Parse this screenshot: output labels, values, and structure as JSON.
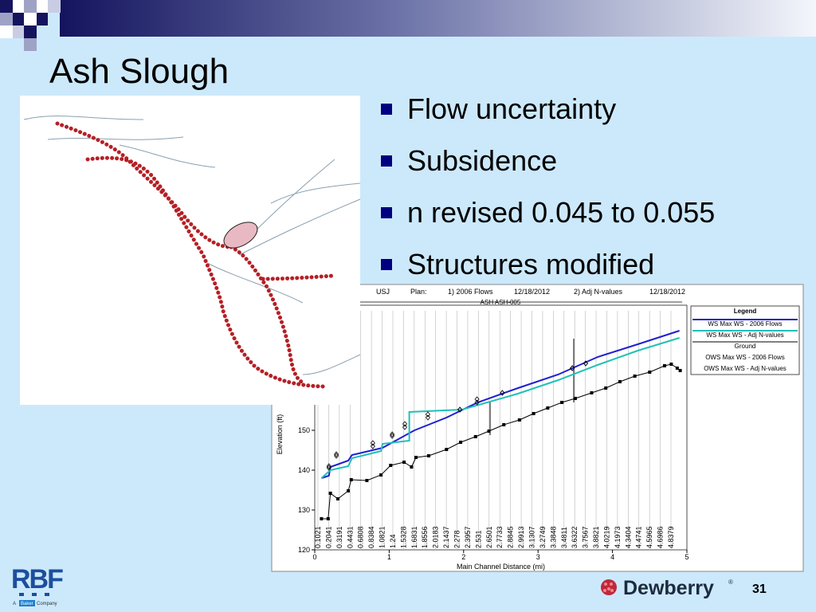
{
  "title": "Ash Slough",
  "bullets": [
    "Flow uncertainty",
    "Subsidence",
    "n revised 0.045 to 0.055",
    "Structures modified"
  ],
  "chart": {
    "type": "line",
    "header": [
      "USJ",
      "Plan:",
      "1) 2006 Flows",
      "12/18/2012",
      "2) Adj N-values",
      "12/18/2012"
    ],
    "reach_label": "ASH ASH-005",
    "legend_title": "Legend",
    "y_label": "Elevation (ft)",
    "x_label": "Main Channel Distance (mi)",
    "xlim": [
      0,
      5
    ],
    "xticks": [
      0,
      1,
      2,
      3,
      4,
      5
    ],
    "ylim": [
      120,
      180
    ],
    "yticks": [
      120,
      130,
      140,
      150
    ],
    "stations": [
      "0.1021",
      "0.2041",
      "0.3191",
      "0.4431",
      "0.6808",
      "0.8384",
      "1.0821",
      "1.24",
      "1.5328",
      "1.6831",
      "1.8556",
      "2.0183",
      "2.1437",
      "2.278",
      "2.3957",
      "2.531",
      "2.6501",
      "2.7733",
      "2.8845",
      "2.9913",
      "3.1307",
      "3.2749",
      "3.3848",
      "3.4811",
      "3.6322",
      "3.7567",
      "3.8821",
      "4.0219",
      "4.1973",
      "4.3404",
      "4.4741",
      "4.5965",
      "4.6986",
      "4.8379"
    ],
    "series": [
      {
        "name": "WS Max WS - 2006 Flows",
        "color": "#1f1fd0",
        "style": "line",
        "x": [
          0.09,
          0.19,
          0.21,
          0.45,
          0.5,
          0.91,
          1.34,
          1.77,
          2.19,
          2.73,
          3.27,
          3.8,
          4.34,
          4.9
        ],
        "values": [
          138,
          138.6,
          140.8,
          142.4,
          143.8,
          145.6,
          150,
          153.2,
          157,
          160.6,
          164,
          168.4,
          171.6,
          175
        ]
      },
      {
        "name": "WS Max WS - Adj N-values",
        "color": "#20c0b8",
        "style": "line",
        "x": [
          0.09,
          0.21,
          0.45,
          0.5,
          0.89,
          0.91,
          1.27,
          1.27,
          1.98,
          2.73,
          3.27,
          3.8,
          4.34,
          4.9
        ],
        "values": [
          138,
          140,
          141,
          143,
          144.8,
          146.6,
          147.4,
          154.6,
          155.2,
          159.2,
          162.6,
          166.4,
          170,
          173.2
        ]
      },
      {
        "name": "Ground",
        "color": "#000000",
        "style": "line-markers",
        "x": [
          0.09,
          0.18,
          0.21,
          0.31,
          0.45,
          0.49,
          0.7,
          0.89,
          1.02,
          1.2,
          1.3,
          1.36,
          1.53,
          1.77,
          1.96,
          2.16,
          2.34,
          2.54,
          2.75,
          2.94,
          3.13,
          3.32,
          3.5,
          3.72,
          3.91,
          4.1,
          4.3,
          4.5,
          4.7,
          4.79,
          4.87,
          4.91
        ],
        "values": [
          127.8,
          127.8,
          134.2,
          132.8,
          134.8,
          137.6,
          137.4,
          138.8,
          141.2,
          142,
          140.8,
          143.2,
          143.6,
          145.2,
          147,
          148.4,
          149.8,
          151.4,
          152.6,
          154.2,
          155.6,
          157,
          158,
          159.4,
          160.6,
          162.2,
          163.6,
          164.6,
          166.2,
          166.6,
          165.6,
          165
        ]
      },
      {
        "name": "OWS Max WS - 2006 Flows",
        "color": "#000000",
        "style": "markers",
        "x": [
          0.19,
          0.29,
          0.78,
          1.04,
          1.21,
          1.52,
          1.95,
          2.18,
          2.52,
          3.46,
          3.64
        ],
        "values": [
          141,
          144,
          146.8,
          149,
          151.6,
          154,
          155.2,
          157.8,
          159.4,
          165.6,
          166.8
        ]
      },
      {
        "name": "OWS Max WS - Adj N-values",
        "color": "#000000",
        "style": "markers",
        "x": [
          0.19,
          0.29,
          0.78,
          1.04,
          1.21,
          1.52,
          1.95,
          2.18,
          2.52,
          3.46,
          3.64
        ],
        "values": [
          140.6,
          143.6,
          146,
          148.6,
          150.8,
          153.2,
          155.2,
          157,
          159.4,
          165.6,
          166.8
        ]
      }
    ]
  },
  "logo_left": {
    "name": "RBF",
    "tagline": [
      "A",
      "Baker",
      "Company"
    ]
  },
  "logo_right": {
    "name": "Dewberry",
    "mark": "®"
  },
  "page_number": "31"
}
